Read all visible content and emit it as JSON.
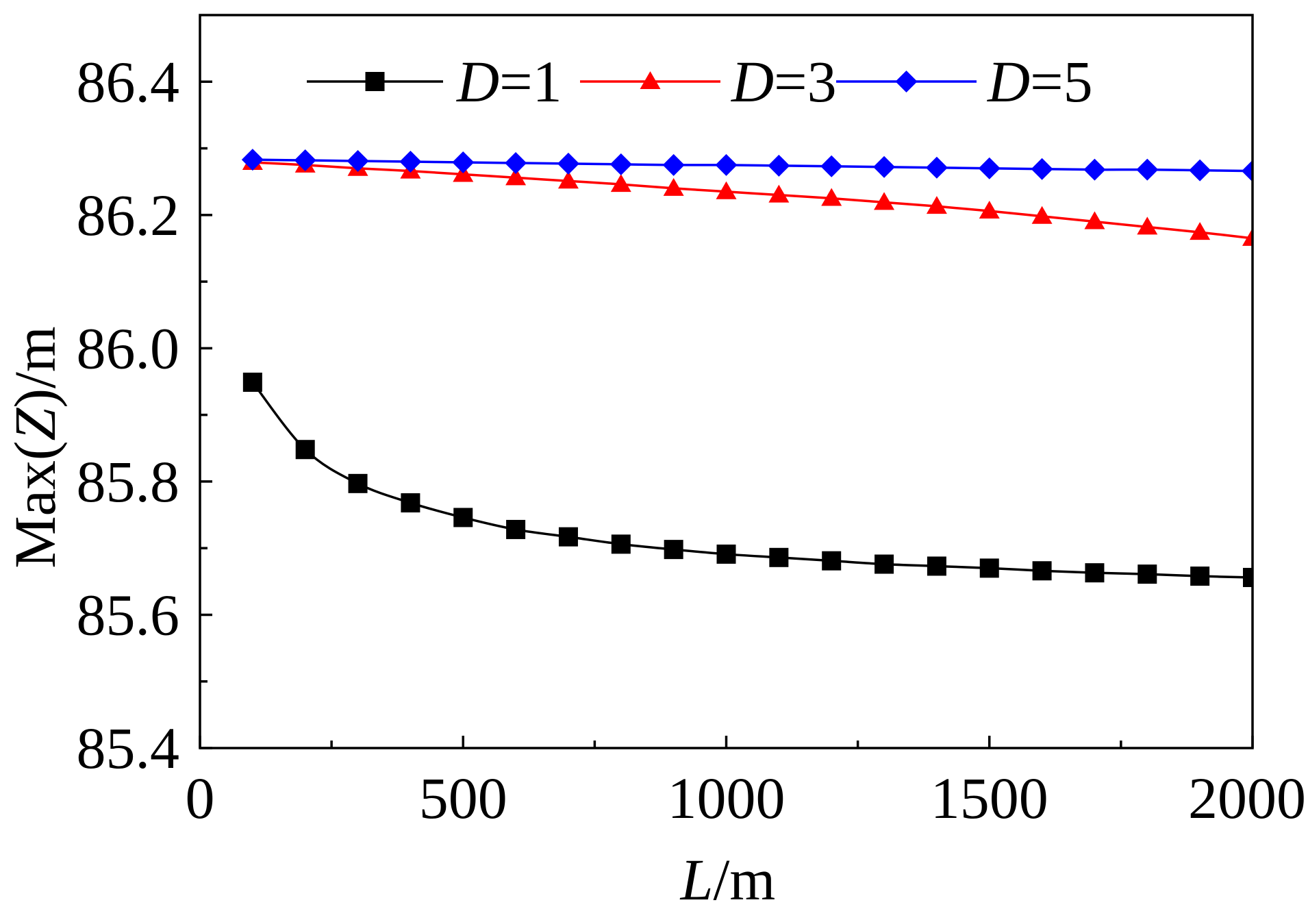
{
  "chart_data": {
    "type": "line",
    "title": "",
    "xlabel": "L/m",
    "ylabel": "Max(Z)/m",
    "xlim": [
      0,
      2000
    ],
    "ylim": [
      85.4,
      86.5
    ],
    "xticks": [
      "0",
      "500",
      "1000",
      "1500",
      "2000"
    ],
    "yticks": [
      "85.4",
      "85.6",
      "85.8",
      "86.0",
      "86.2",
      "86.4"
    ],
    "xminor_step": 250,
    "yminor_step": 0.1,
    "grid": false,
    "legend": "top",
    "x": [
      100,
      200,
      300,
      400,
      500,
      600,
      700,
      800,
      900,
      1000,
      1100,
      1200,
      1300,
      1400,
      1500,
      1600,
      1700,
      1800,
      1900,
      2000
    ],
    "series": [
      {
        "name": "D=1",
        "color": "#000000",
        "marker": "square",
        "values": [
          85.949,
          85.848,
          85.797,
          85.768,
          85.746,
          85.728,
          85.717,
          85.706,
          85.698,
          85.691,
          85.686,
          85.681,
          85.676,
          85.673,
          85.67,
          85.666,
          85.663,
          85.661,
          85.658,
          85.656
        ]
      },
      {
        "name": "D=3",
        "color": "#ff0000",
        "marker": "triangle",
        "values": [
          86.279,
          86.275,
          86.27,
          86.266,
          86.261,
          86.256,
          86.251,
          86.246,
          86.24,
          86.235,
          86.23,
          86.225,
          86.219,
          86.213,
          86.206,
          86.198,
          86.19,
          86.182,
          86.174,
          86.165
        ]
      },
      {
        "name": "D=5",
        "color": "#0000ff",
        "marker": "diamond",
        "values": [
          86.283,
          86.282,
          86.281,
          86.28,
          86.279,
          86.278,
          86.277,
          86.276,
          86.275,
          86.275,
          86.274,
          86.273,
          86.272,
          86.271,
          86.27,
          86.269,
          86.268,
          86.268,
          86.267,
          86.266
        ]
      }
    ]
  }
}
